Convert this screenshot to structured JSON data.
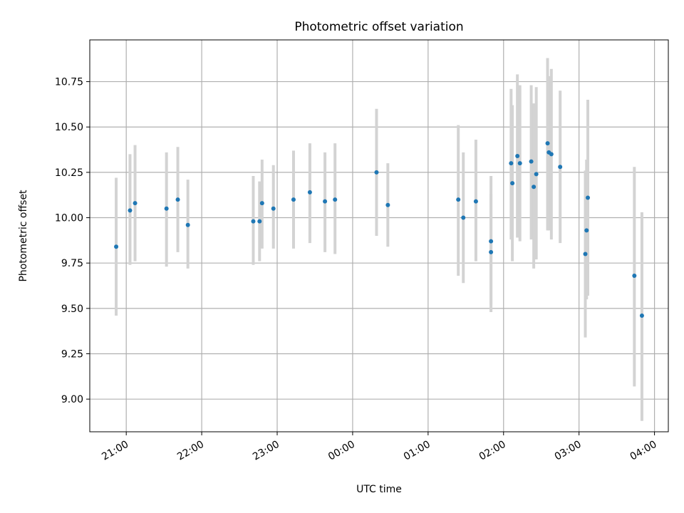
{
  "chart_data": {
    "type": "scatter",
    "title": "Photometric offset variation",
    "xlabel": "UTC time",
    "ylabel": "Photometric offset",
    "x_tick_labels": [
      "21:00",
      "22:00",
      "23:00",
      "00:00",
      "01:00",
      "02:00",
      "03:00",
      "04:00"
    ],
    "y_tick_labels": [
      "9.00",
      "9.25",
      "9.50",
      "9.75",
      "10.00",
      "10.25",
      "10.50",
      "10.75"
    ],
    "xlim": [
      "20:31",
      "04:11"
    ],
    "ylim": [
      8.82,
      10.98
    ],
    "grid": true,
    "colors": {
      "point": "#1f77b4",
      "errorbar": "#d3d3d3",
      "grid": "#b0b0b0"
    },
    "series": [
      {
        "points": [
          {
            "x": "20:52",
            "y": 9.84,
            "lo": 9.46,
            "hi": 10.22
          },
          {
            "x": "21:03",
            "y": 10.04,
            "lo": 9.74,
            "hi": 10.35
          },
          {
            "x": "21:07",
            "y": 10.08,
            "lo": 9.76,
            "hi": 10.4
          },
          {
            "x": "21:32",
            "y": 10.05,
            "lo": 9.73,
            "hi": 10.36
          },
          {
            "x": "21:41",
            "y": 10.1,
            "lo": 9.81,
            "hi": 10.39
          },
          {
            "x": "21:49",
            "y": 9.96,
            "lo": 9.72,
            "hi": 10.21
          },
          {
            "x": "22:41",
            "y": 9.98,
            "lo": 9.74,
            "hi": 10.23
          },
          {
            "x": "22:46",
            "y": 9.98,
            "lo": 9.76,
            "hi": 10.2
          },
          {
            "x": "22:48",
            "y": 10.08,
            "lo": 9.83,
            "hi": 10.32
          },
          {
            "x": "22:57",
            "y": 10.05,
            "lo": 9.83,
            "hi": 10.29
          },
          {
            "x": "23:13",
            "y": 10.1,
            "lo": 9.83,
            "hi": 10.37
          },
          {
            "x": "23:26",
            "y": 10.14,
            "lo": 9.86,
            "hi": 10.41
          },
          {
            "x": "23:38",
            "y": 10.09,
            "lo": 9.81,
            "hi": 10.36
          },
          {
            "x": "23:46",
            "y": 10.1,
            "lo": 9.8,
            "hi": 10.41
          },
          {
            "x": "00:19",
            "y": 10.25,
            "lo": 9.9,
            "hi": 10.6
          },
          {
            "x": "00:28",
            "y": 10.07,
            "lo": 9.84,
            "hi": 10.3
          },
          {
            "x": "01:24",
            "y": 10.1,
            "lo": 9.68,
            "hi": 10.51
          },
          {
            "x": "01:28",
            "y": 10.0,
            "lo": 9.64,
            "hi": 10.36
          },
          {
            "x": "01:38",
            "y": 10.09,
            "lo": 9.76,
            "hi": 10.43
          },
          {
            "x": "01:50",
            "y": 9.87,
            "lo": 9.52,
            "hi": 10.23
          },
          {
            "x": "01:50",
            "y": 9.81,
            "lo": 9.48,
            "hi": 10.13
          },
          {
            "x": "02:06",
            "y": 10.3,
            "lo": 9.88,
            "hi": 10.71
          },
          {
            "x": "02:07",
            "y": 10.19,
            "lo": 9.76,
            "hi": 10.62
          },
          {
            "x": "02:11",
            "y": 10.34,
            "lo": 9.89,
            "hi": 10.79
          },
          {
            "x": "02:13",
            "y": 10.3,
            "lo": 9.87,
            "hi": 10.73
          },
          {
            "x": "02:22",
            "y": 10.31,
            "lo": 9.88,
            "hi": 10.73
          },
          {
            "x": "02:24",
            "y": 10.17,
            "lo": 9.72,
            "hi": 10.63
          },
          {
            "x": "02:26",
            "y": 10.24,
            "lo": 9.77,
            "hi": 10.72
          },
          {
            "x": "02:35",
            "y": 10.41,
            "lo": 9.93,
            "hi": 10.88
          },
          {
            "x": "02:36",
            "y": 10.36,
            "lo": 9.93,
            "hi": 10.78
          },
          {
            "x": "02:38",
            "y": 10.35,
            "lo": 9.88,
            "hi": 10.82
          },
          {
            "x": "02:45",
            "y": 10.28,
            "lo": 9.86,
            "hi": 10.7
          },
          {
            "x": "03:05",
            "y": 9.8,
            "lo": 9.34,
            "hi": 10.26
          },
          {
            "x": "03:06",
            "y": 9.93,
            "lo": 9.55,
            "hi": 10.32
          },
          {
            "x": "03:07",
            "y": 10.11,
            "lo": 9.57,
            "hi": 10.65
          },
          {
            "x": "03:44",
            "y": 9.68,
            "lo": 9.07,
            "hi": 10.28
          },
          {
            "x": "03:50",
            "y": 9.46,
            "lo": 8.88,
            "hi": 10.03
          }
        ]
      }
    ]
  }
}
